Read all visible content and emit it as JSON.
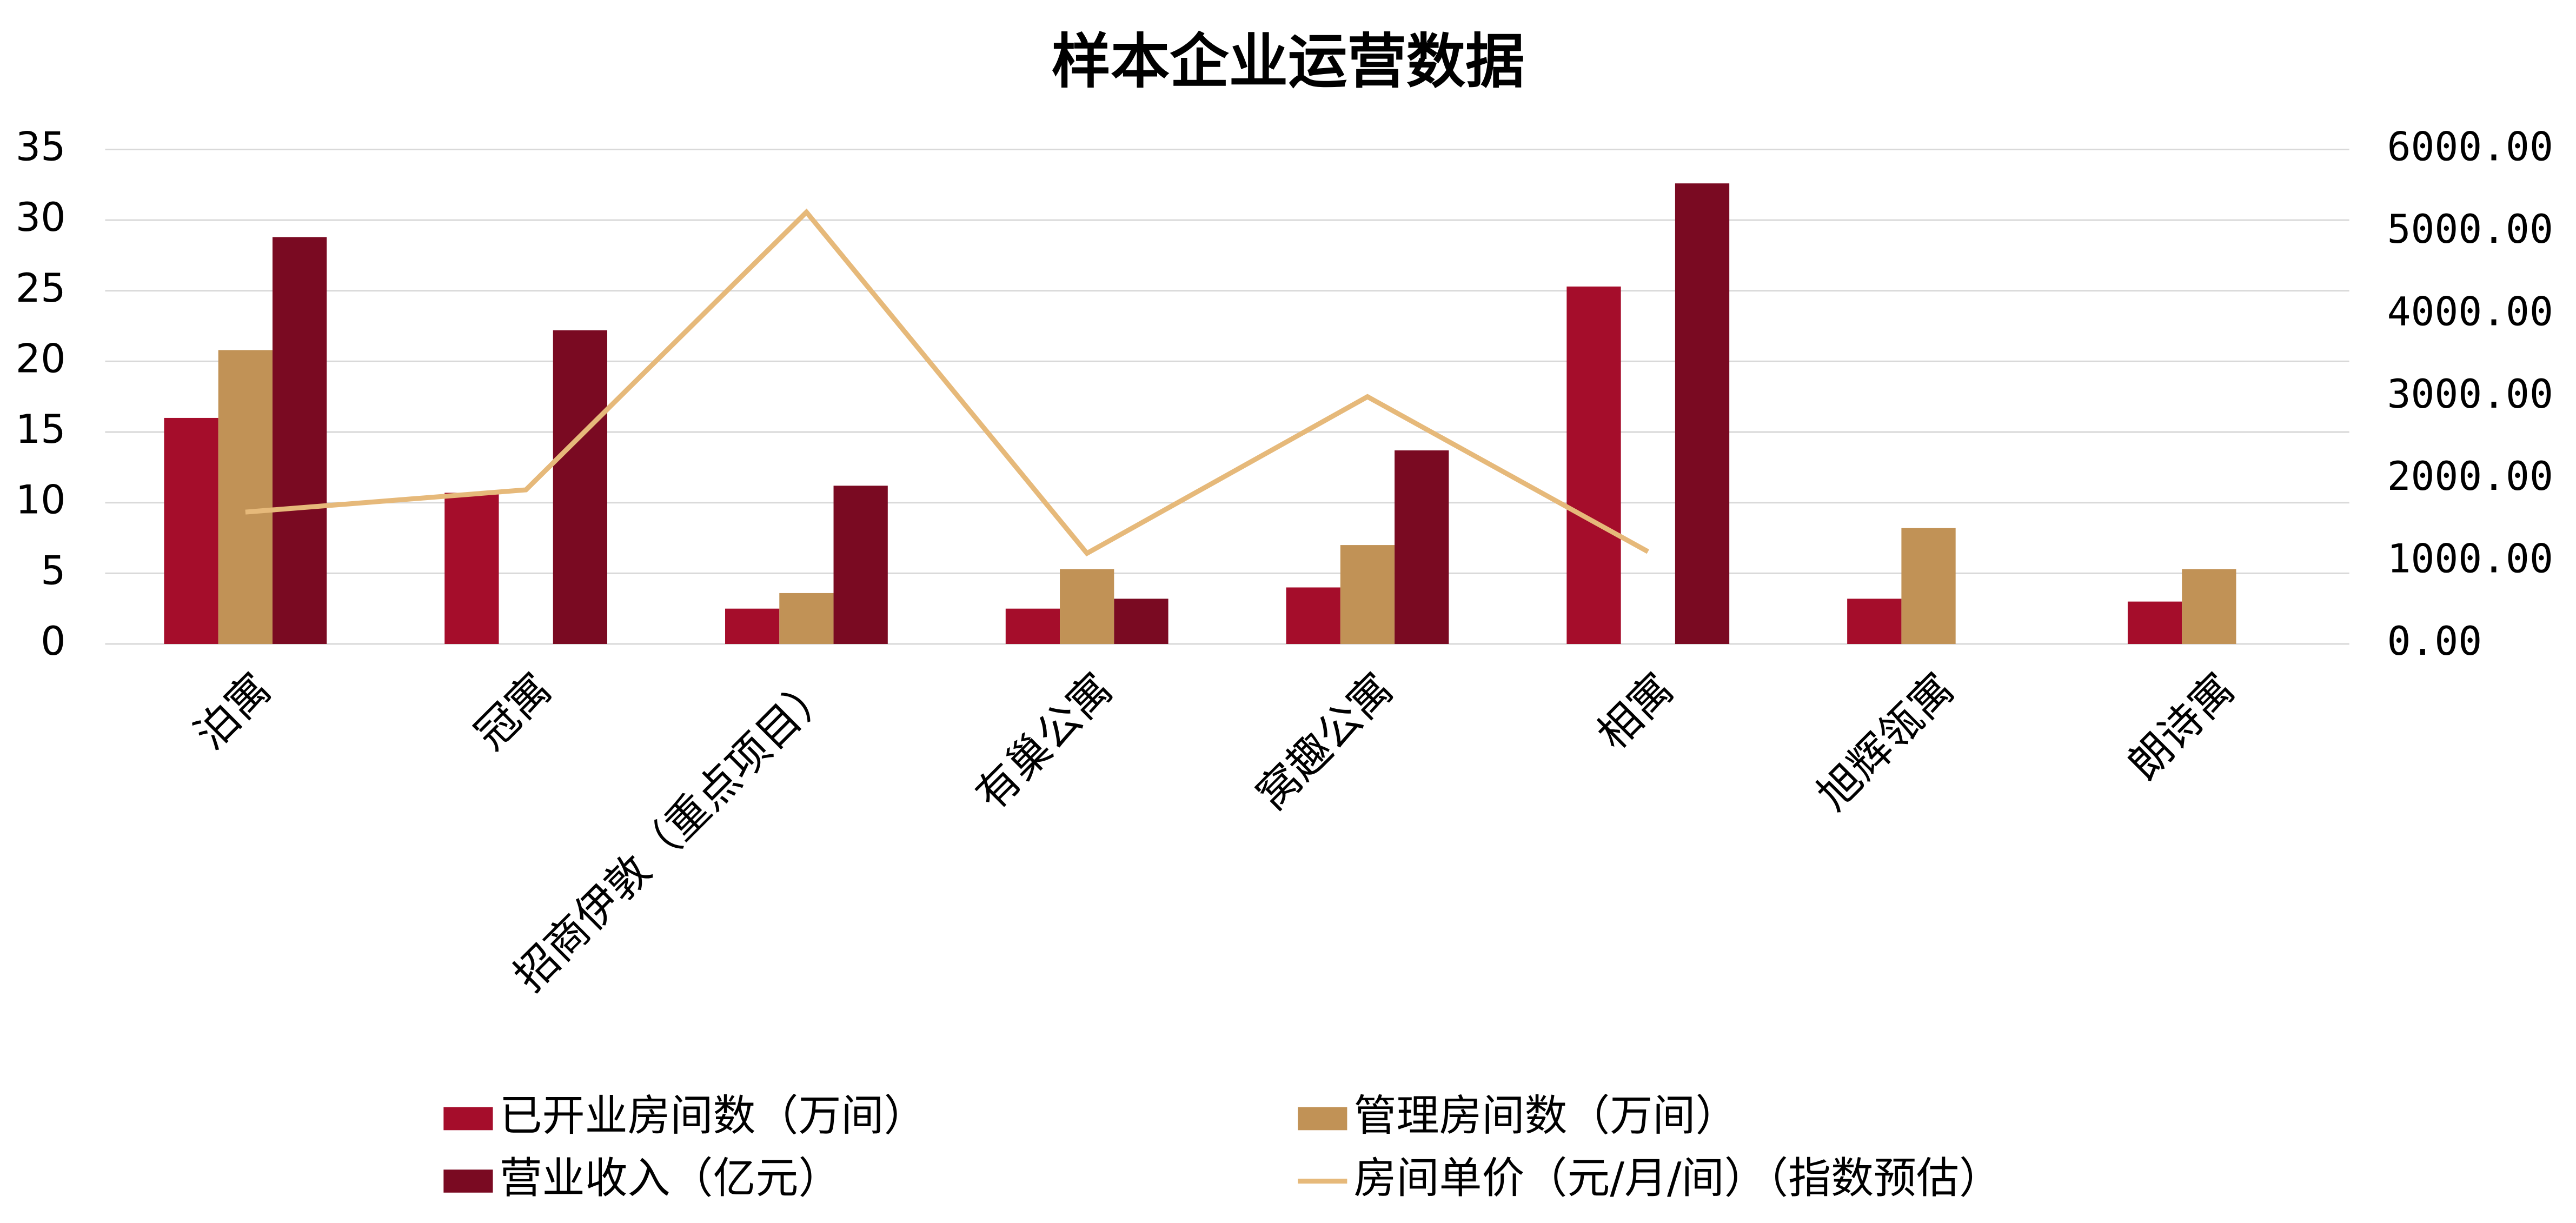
{
  "chart_data": {
    "type": "bar-line",
    "title": "样本企业运营数据",
    "categories": [
      "泊寓",
      "冠寓",
      "招商伊敦（重点项目）",
      "有巢公寓",
      "窝趣公寓",
      "相寓",
      "旭辉瓴寓",
      "朗诗寓"
    ],
    "series": [
      {
        "name": "已开业房间数（万间）",
        "type": "bar",
        "color": "#a50d2b",
        "values": [
          16,
          10.7,
          2.5,
          2.5,
          4,
          25.3,
          3.2,
          3
        ]
      },
      {
        "name": "管理房间数（万间）",
        "type": "bar",
        "color": "#c19256",
        "values": [
          20.8,
          null,
          3.6,
          5.3,
          7,
          null,
          8.2,
          5.3
        ]
      },
      {
        "name": "营业收入（亿元）",
        "type": "bar",
        "color": "#7a0a22",
        "values": [
          28.8,
          22.2,
          11.2,
          3.2,
          13.7,
          32.6,
          null,
          null
        ]
      },
      {
        "name": "房间单价（元/月/间）（指数预估）",
        "type": "line",
        "axis": "y2",
        "color": "#e6b97a",
        "values": [
          1600,
          1870,
          5240,
          1100,
          3000,
          1120,
          null,
          null
        ]
      }
    ],
    "ylim": [
      0,
      35
    ],
    "yticks": [
      0,
      5,
      10,
      15,
      20,
      25,
      30,
      35
    ],
    "y2lim": [
      0,
      6000
    ],
    "y2ticks": [
      {
        "value": 0,
        "label": "0.00"
      },
      {
        "value": 1000,
        "label": "1000.00"
      },
      {
        "value": 2000,
        "label": "2000.00"
      },
      {
        "value": 3000,
        "label": "3000.00"
      },
      {
        "value": 4000,
        "label": "4000.00"
      },
      {
        "value": 5000,
        "label": "5000.00"
      },
      {
        "value": 6000,
        "label": "6000.00"
      }
    ],
    "grid": true
  }
}
